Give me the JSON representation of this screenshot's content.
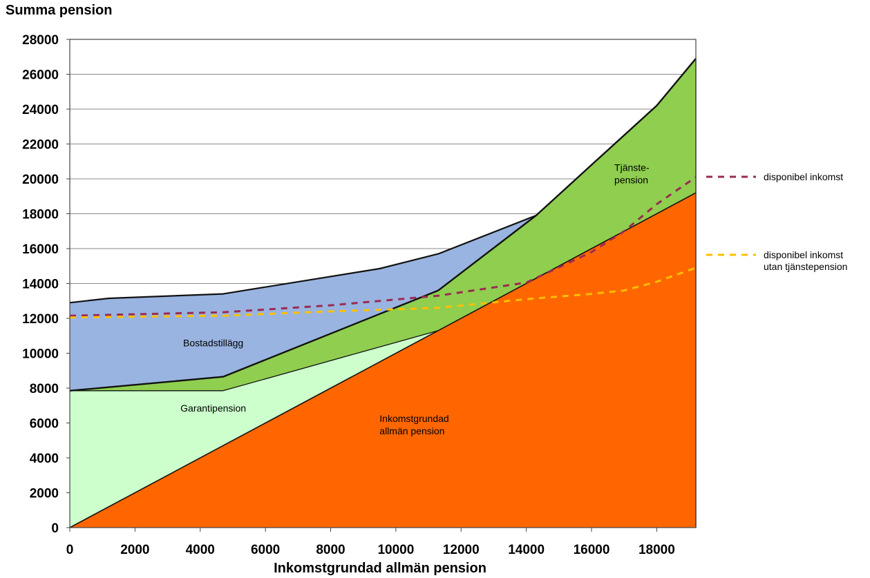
{
  "chart_data": {
    "type": "area",
    "ylabel": "Summa pension",
    "xlabel": "Inkomstgrundad allmän pension",
    "xlim": [
      0,
      19200
    ],
    "ylim": [
      0,
      28000
    ],
    "xticks": [
      0,
      2000,
      4000,
      6000,
      8000,
      10000,
      12000,
      14000,
      16000,
      18000
    ],
    "yticks": [
      0,
      2000,
      4000,
      6000,
      8000,
      10000,
      12000,
      14000,
      16000,
      18000,
      20000,
      22000,
      24000,
      26000,
      28000
    ],
    "grid": "horizontal",
    "colors": {
      "inkomst": "#ff6600",
      "garanti": "#ccffcc",
      "tjanste": "#8fce4f",
      "bostad": "#99b4e0",
      "disp": "#9b2a52",
      "disp_utan": "#ffc000"
    },
    "areas": [
      {
        "key": "inkomst",
        "label": [
          "Inkomstgrundad",
          "allmän pension"
        ],
        "upper": [
          [
            0,
            0
          ],
          [
            11300,
            11300
          ],
          [
            19200,
            19200
          ]
        ]
      },
      {
        "key": "garanti",
        "label": [
          "Garantipension"
        ],
        "upper": [
          [
            0,
            7850
          ],
          [
            4700,
            7850
          ],
          [
            11300,
            11300
          ]
        ]
      },
      {
        "key": "tjanste",
        "label": [
          "Tjänste-",
          "pension"
        ],
        "upper": [
          [
            0,
            7850
          ],
          [
            4700,
            8650
          ],
          [
            11300,
            13600
          ],
          [
            14300,
            17900
          ],
          [
            16000,
            20800
          ],
          [
            18000,
            24200
          ],
          [
            19200,
            26900
          ]
        ]
      },
      {
        "key": "bostad",
        "label": [
          "Bostadstillägg"
        ],
        "upper": [
          [
            0,
            12900
          ],
          [
            1200,
            13150
          ],
          [
            4700,
            13400
          ],
          [
            9500,
            14850
          ],
          [
            11300,
            15700
          ],
          [
            14300,
            17900
          ]
        ]
      }
    ],
    "series": [
      {
        "name": "disponibel inkomst",
        "key": "disp",
        "points": [
          [
            0,
            12150
          ],
          [
            4700,
            12350
          ],
          [
            8000,
            12750
          ],
          [
            11300,
            13300
          ],
          [
            14000,
            14050
          ],
          [
            16000,
            15800
          ],
          [
            17000,
            17000
          ],
          [
            18000,
            18550
          ],
          [
            19200,
            20100
          ]
        ]
      },
      {
        "name": "disponibel inkomst utan tjänstepension",
        "key": "disp_utan",
        "points": [
          [
            0,
            12050
          ],
          [
            4700,
            12150
          ],
          [
            8000,
            12400
          ],
          [
            11300,
            12600
          ],
          [
            14000,
            13100
          ],
          [
            16000,
            13400
          ],
          [
            17000,
            13600
          ],
          [
            18000,
            14100
          ],
          [
            19200,
            14900
          ]
        ]
      }
    ],
    "legend": [
      {
        "key": "disp",
        "lines": [
          "disponibel inkomst"
        ]
      },
      {
        "key": "disp_utan",
        "lines": [
          "disponibel inkomst",
          "utan tjänstepension"
        ]
      }
    ]
  }
}
